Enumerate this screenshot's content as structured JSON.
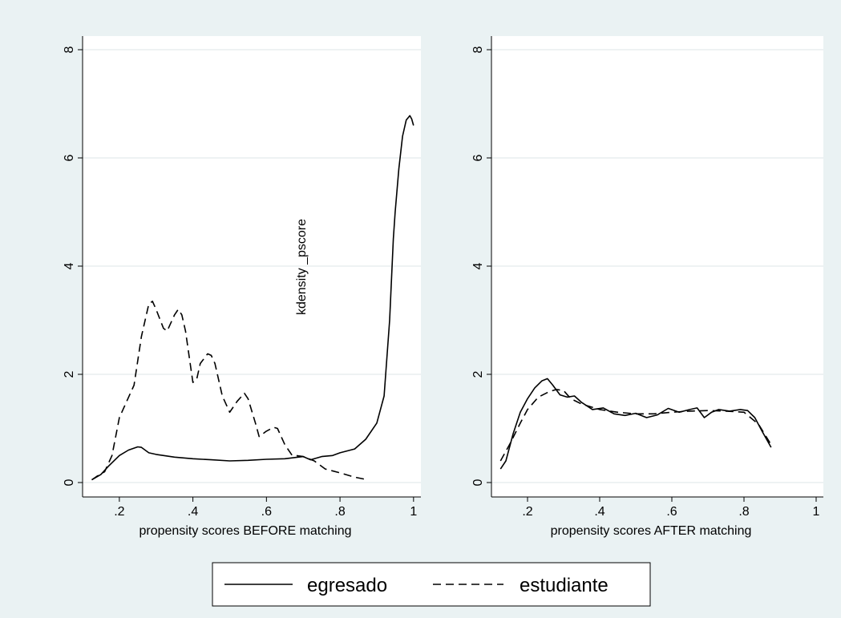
{
  "chart_data": [
    {
      "type": "line",
      "xlabel": "propensity scores BEFORE matching",
      "ylabel": "kdensity _pscore",
      "xlim": [
        0.1,
        1.02
      ],
      "ylim": [
        0,
        8
      ],
      "xticks": [
        0.2,
        0.4,
        0.6,
        0.8,
        1.0
      ],
      "xtick_labels": [
        ".2",
        ".4",
        ".6",
        ".8",
        "1"
      ],
      "yticks": [
        0,
        2,
        4,
        6,
        8
      ],
      "ytick_labels": [
        "0",
        "2",
        "4",
        "6",
        "8"
      ],
      "grid": true,
      "series": [
        {
          "name": "egresado",
          "dash": "solid",
          "x": [
            0.125,
            0.15,
            0.17,
            0.2,
            0.225,
            0.25,
            0.26,
            0.28,
            0.3,
            0.35,
            0.4,
            0.45,
            0.5,
            0.55,
            0.6,
            0.65,
            0.7,
            0.72,
            0.75,
            0.78,
            0.8,
            0.84,
            0.87,
            0.9,
            0.92,
            0.935,
            0.945,
            0.95,
            0.96,
            0.97,
            0.98,
            0.99,
            0.995,
            1.0
          ],
          "y": [
            0.05,
            0.15,
            0.3,
            0.5,
            0.6,
            0.66,
            0.65,
            0.55,
            0.52,
            0.47,
            0.44,
            0.42,
            0.4,
            0.41,
            0.43,
            0.44,
            0.48,
            0.42,
            0.48,
            0.5,
            0.55,
            0.62,
            0.8,
            1.1,
            1.6,
            3.0,
            4.5,
            5.0,
            5.8,
            6.4,
            6.7,
            6.78,
            6.72,
            6.6
          ]
        },
        {
          "name": "estudiante",
          "dash": "dashed",
          "x": [
            0.125,
            0.14,
            0.16,
            0.18,
            0.2,
            0.22,
            0.24,
            0.26,
            0.28,
            0.29,
            0.3,
            0.32,
            0.33,
            0.35,
            0.36,
            0.37,
            0.38,
            0.4,
            0.41,
            0.42,
            0.44,
            0.45,
            0.46,
            0.48,
            0.5,
            0.52,
            0.54,
            0.55,
            0.57,
            0.58,
            0.6,
            0.62,
            0.63,
            0.65,
            0.67,
            0.68,
            0.7,
            0.73,
            0.76,
            0.8,
            0.84,
            0.875
          ],
          "y": [
            0.05,
            0.12,
            0.2,
            0.5,
            1.2,
            1.5,
            1.8,
            2.7,
            3.3,
            3.35,
            3.2,
            2.85,
            2.8,
            3.1,
            3.2,
            3.1,
            2.8,
            1.85,
            1.9,
            2.2,
            2.38,
            2.35,
            2.2,
            1.6,
            1.3,
            1.5,
            1.65,
            1.55,
            1.1,
            0.85,
            0.95,
            1.02,
            1.0,
            0.7,
            0.5,
            0.5,
            0.48,
            0.4,
            0.25,
            0.18,
            0.1,
            0.05
          ]
        }
      ]
    },
    {
      "type": "line",
      "xlabel": "propensity scores AFTER matching",
      "ylabel": "",
      "xlim": [
        0.1,
        1.02
      ],
      "ylim": [
        0,
        8
      ],
      "xticks": [
        0.2,
        0.4,
        0.6,
        0.8,
        1.0
      ],
      "xtick_labels": [
        ".2",
        ".4",
        ".6",
        ".8",
        "1"
      ],
      "yticks": [
        0,
        2,
        4,
        6,
        8
      ],
      "ytick_labels": [
        "0",
        "2",
        "4",
        "6",
        "8"
      ],
      "grid": true,
      "series": [
        {
          "name": "egresado",
          "dash": "solid",
          "x": [
            0.125,
            0.14,
            0.16,
            0.18,
            0.2,
            0.22,
            0.24,
            0.255,
            0.27,
            0.29,
            0.31,
            0.33,
            0.35,
            0.38,
            0.41,
            0.44,
            0.47,
            0.5,
            0.53,
            0.56,
            0.59,
            0.62,
            0.65,
            0.67,
            0.69,
            0.71,
            0.73,
            0.76,
            0.79,
            0.81,
            0.83,
            0.85,
            0.875
          ],
          "y": [
            0.25,
            0.4,
            0.9,
            1.3,
            1.55,
            1.75,
            1.88,
            1.92,
            1.8,
            1.62,
            1.58,
            1.6,
            1.48,
            1.35,
            1.38,
            1.27,
            1.24,
            1.28,
            1.2,
            1.25,
            1.37,
            1.3,
            1.35,
            1.38,
            1.2,
            1.3,
            1.35,
            1.32,
            1.35,
            1.33,
            1.2,
            0.95,
            0.65
          ]
        },
        {
          "name": "estudiante",
          "dash": "dashed",
          "x": [
            0.125,
            0.15,
            0.18,
            0.2,
            0.23,
            0.26,
            0.28,
            0.3,
            0.32,
            0.35,
            0.4,
            0.45,
            0.5,
            0.55,
            0.6,
            0.65,
            0.7,
            0.75,
            0.8,
            0.84,
            0.875
          ],
          "y": [
            0.4,
            0.7,
            1.1,
            1.35,
            1.58,
            1.68,
            1.72,
            1.7,
            1.55,
            1.45,
            1.35,
            1.3,
            1.27,
            1.27,
            1.3,
            1.32,
            1.33,
            1.32,
            1.3,
            1.08,
            0.7
          ]
        }
      ]
    }
  ],
  "legend": {
    "position": "bottom",
    "items": [
      {
        "label": "egresado",
        "dash": "solid"
      },
      {
        "label": "estudiante",
        "dash": "dashed"
      }
    ]
  },
  "colors": {
    "background": "#eaf2f3",
    "plot": "#ffffff",
    "grid": "#dde6e7",
    "line": "#000000"
  }
}
